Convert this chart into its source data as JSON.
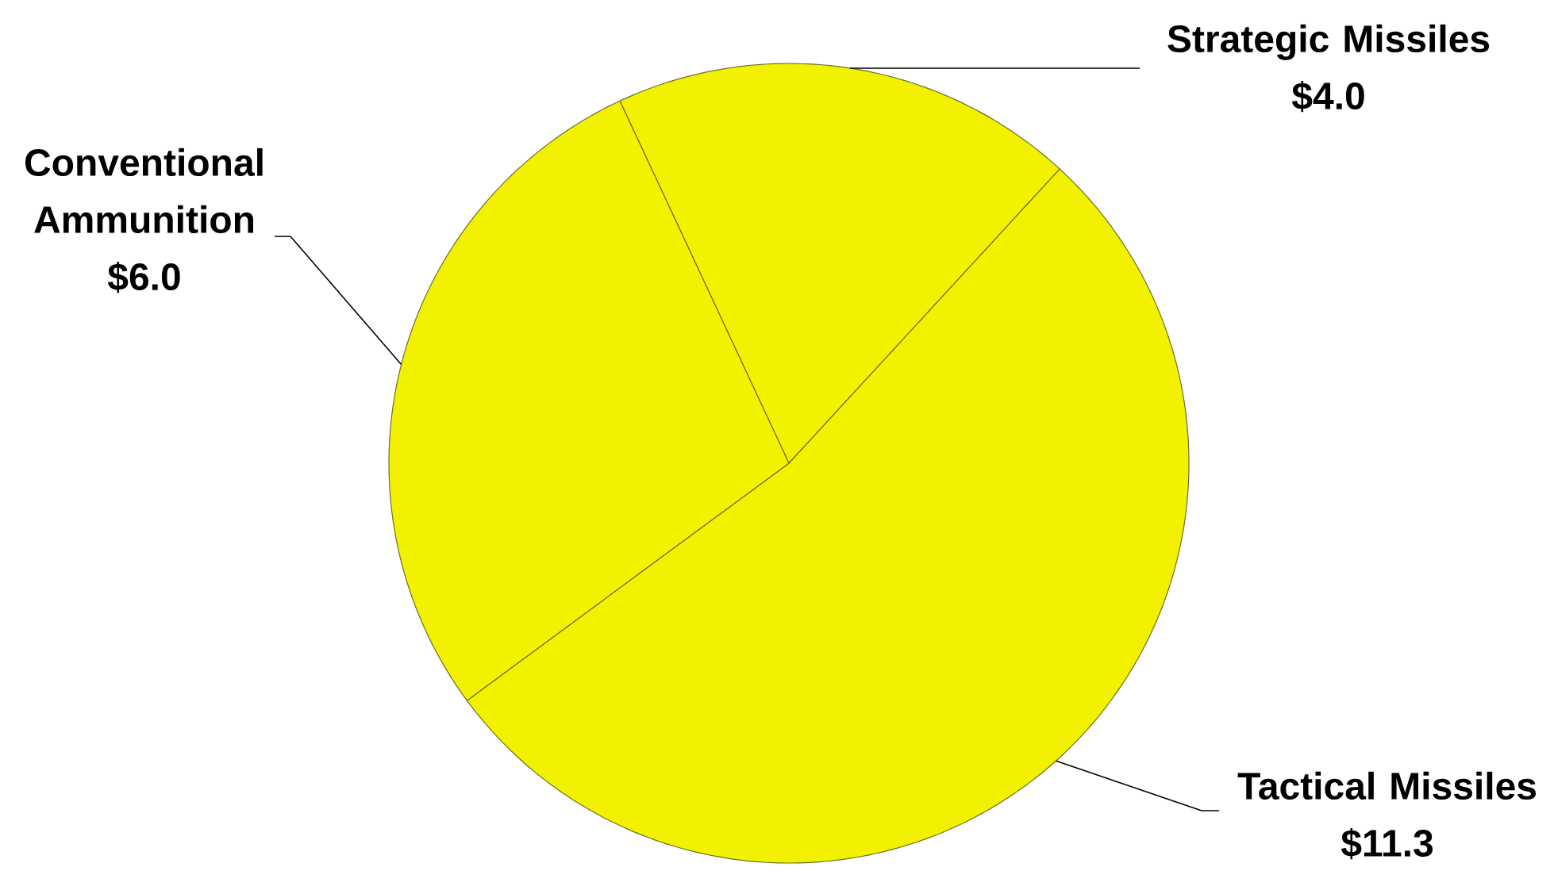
{
  "chart_data": {
    "type": "pie",
    "categories": [
      "Strategic Missiles",
      "Tactical Missiles",
      "Conventional Ammunition"
    ],
    "values": [
      4.0,
      11.3,
      6.0
    ],
    "colors": [
      "#f2f200",
      "#f2f200",
      "#f2f200"
    ],
    "value_labels": [
      "$4.0",
      "$11.3",
      "$6.0"
    ]
  }
}
